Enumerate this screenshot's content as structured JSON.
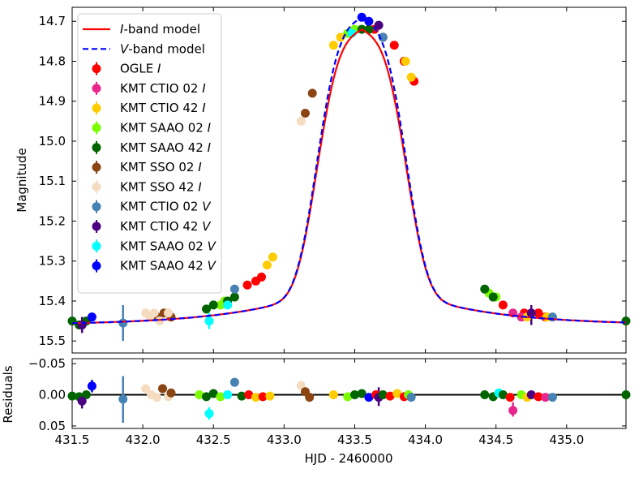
{
  "chart_data": [
    {
      "type": "line",
      "panel": "main",
      "xlabel": "HJD - 2460000",
      "ylabel": "Magnitude",
      "xlim": [
        431.5,
        435.42
      ],
      "ylim": [
        15.53,
        14.665
      ],
      "y_inverted": true,
      "yticks": [
        14.7,
        14.8,
        14.9,
        15.0,
        15.1,
        15.2,
        15.3,
        15.4,
        15.5
      ],
      "ytick_labels": [
        "14.7",
        "14.8",
        "14.9",
        "15.0",
        "15.1",
        "15.2",
        "15.3",
        "15.4",
        "15.5"
      ],
      "legend_position": "top-left",
      "models": [
        {
          "name_prefix": "I",
          "name_suffix": "-band model",
          "color": "#ff0000",
          "style": "solid",
          "peak_x": 433.55,
          "peak_y": 14.72
        },
        {
          "name_prefix": "V",
          "name_suffix": "-band model",
          "color": "#0000ff",
          "style": "dashed",
          "peak_x": 433.55,
          "peak_y": 14.69
        }
      ],
      "model_params": {
        "t0": 433.55,
        "baseline": 15.46,
        "wing_amp": 0.14,
        "wing_tau": 0.6,
        "core_width": 0.36,
        "core_power": 3.2
      },
      "series": [
        {
          "name": "OGLE",
          "band": "I",
          "color": "#ff0000",
          "points": [
            [
              432.74,
              15.36
            ],
            [
              432.8,
              15.35
            ],
            [
              432.84,
              15.34
            ],
            [
              433.64,
              14.72
            ],
            [
              433.7,
              14.74
            ],
            [
              433.78,
              14.76
            ],
            [
              433.85,
              14.8
            ],
            [
              433.92,
              14.85
            ],
            [
              434.55,
              15.41
            ],
            [
              434.7,
              15.43
            ],
            [
              434.8,
              15.43
            ],
            [
              434.85,
              15.44
            ]
          ]
        },
        {
          "name": "KMT CTIO 02",
          "band": "I",
          "color": "#e8268c",
          "points": [
            [
              434.62,
              15.43
            ],
            [
              434.68,
              15.44
            ]
          ]
        },
        {
          "name": "KMT CTIO 42",
          "band": "I",
          "color": "#ffcc00",
          "points": [
            [
              432.88,
              15.31
            ],
            [
              432.92,
              15.29
            ],
            [
              433.35,
              14.76
            ],
            [
              433.4,
              14.74
            ],
            [
              433.86,
              14.8
            ],
            [
              433.9,
              14.84
            ],
            [
              434.72,
              15.44
            ],
            [
              434.86,
              15.44
            ]
          ]
        },
        {
          "name": "KMT SAAO 02",
          "band": "I",
          "color": "#7cfc00",
          "points": [
            [
              432.55,
              15.41
            ],
            [
              432.58,
              15.4
            ],
            [
              433.45,
              14.73
            ],
            [
              433.5,
              14.72
            ],
            [
              434.45,
              15.38
            ],
            [
              434.5,
              15.39
            ]
          ]
        },
        {
          "name": "KMT SAAO 42",
          "band": "I",
          "color": "#006400",
          "points": [
            [
              431.5,
              15.45
            ],
            [
              431.55,
              15.46
            ],
            [
              431.6,
              15.45
            ],
            [
              432.45,
              15.42
            ],
            [
              432.5,
              15.41
            ],
            [
              432.6,
              15.4
            ],
            [
              432.65,
              15.39
            ],
            [
              433.55,
              14.72
            ],
            [
              433.6,
              14.72
            ],
            [
              434.42,
              15.37
            ],
            [
              434.48,
              15.39
            ],
            [
              435.42,
              15.45
            ]
          ]
        },
        {
          "name": "KMT SSO 02",
          "band": "I",
          "color": "#8b4513",
          "points": [
            [
              432.1,
              15.44
            ],
            [
              432.15,
              15.43
            ],
            [
              432.2,
              15.44
            ],
            [
              433.15,
              14.93
            ],
            [
              433.2,
              14.88
            ]
          ]
        },
        {
          "name": "KMT SSO 42",
          "band": "I",
          "color": "#f5dcc0",
          "points": [
            [
              432.02,
              15.43
            ],
            [
              432.05,
              15.44
            ],
            [
              432.08,
              15.43
            ],
            [
              432.12,
              15.45
            ],
            [
              432.18,
              15.43
            ],
            [
              433.12,
              14.95
            ]
          ]
        },
        {
          "name": "KMT CTIO 02",
          "band": "V",
          "color": "#4682b4",
          "points": [
            [
              431.86,
              15.455
            ],
            [
              432.65,
              15.37
            ],
            [
              433.7,
              14.74
            ],
            [
              434.9,
              15.44
            ]
          ]
        },
        {
          "name": "KMT CTIO 42",
          "band": "V",
          "color": "#4b0082",
          "points": [
            [
              431.57,
              15.46
            ],
            [
              433.67,
              14.71
            ],
            [
              434.75,
              15.43
            ]
          ]
        },
        {
          "name": "KMT SAAO 02",
          "band": "V",
          "color": "#00ffff",
          "points": [
            [
              432.47,
              15.45
            ],
            [
              432.6,
              15.41
            ],
            [
              433.48,
              14.73
            ]
          ]
        },
        {
          "name": "KMT SAAO 42",
          "band": "V",
          "color": "#0000ff",
          "points": [
            [
              431.64,
              15.44
            ],
            [
              433.55,
              14.69
            ],
            [
              433.6,
              14.7
            ]
          ]
        }
      ],
      "error_bars": [
        {
          "x": 431.86,
          "y": 15.455,
          "lo": 15.41,
          "hi": 15.5,
          "color": "#4682b4"
        },
        {
          "x": 431.57,
          "y": 15.46,
          "lo": 15.44,
          "hi": 15.48,
          "color": "#4b0082"
        },
        {
          "x": 434.75,
          "y": 15.43,
          "lo": 15.41,
          "hi": 15.46,
          "color": "#4b0082"
        },
        {
          "x": 432.47,
          "y": 15.45,
          "lo": 15.43,
          "hi": 15.47,
          "color": "#00ffff"
        }
      ]
    },
    {
      "type": "scatter",
      "panel": "residuals",
      "ylabel": "Residuals",
      "xlabel": "HJD - 2460000",
      "xlim": [
        431.5,
        435.42
      ],
      "ylim": [
        0.054,
        -0.058
      ],
      "y_inverted": true,
      "yticks": [
        -0.05,
        0.0,
        0.05
      ],
      "ytick_labels": [
        "−0.05",
        "0.00",
        "0.05"
      ],
      "xticks": [
        431.5,
        432.0,
        432.5,
        433.0,
        433.5,
        434.0,
        434.5,
        435.0
      ],
      "xtick_labels": [
        "431.5",
        "432.0",
        "432.5",
        "433.0",
        "433.5",
        "434.0",
        "434.5",
        "435.0"
      ],
      "zero_line": true,
      "points": [
        [
          431.5,
          0.002,
          "#006400"
        ],
        [
          431.55,
          0.003,
          "#006400"
        ],
        [
          431.6,
          0.0,
          "#006400"
        ],
        [
          431.57,
          0.01,
          "#4b0082"
        ],
        [
          431.64,
          -0.014,
          "#0000ff"
        ],
        [
          431.86,
          0.007,
          "#4682b4"
        ],
        [
          432.02,
          -0.01,
          "#f5dcc0"
        ],
        [
          432.06,
          0.0,
          "#f5dcc0"
        ],
        [
          432.1,
          0.004,
          "#f5dcc0"
        ],
        [
          432.14,
          -0.01,
          "#8b4513"
        ],
        [
          432.18,
          0.003,
          "#f5dcc0"
        ],
        [
          432.2,
          -0.003,
          "#8b4513"
        ],
        [
          432.4,
          0.0,
          "#7cfc00"
        ],
        [
          432.45,
          0.003,
          "#006400"
        ],
        [
          432.47,
          0.03,
          "#00ffff"
        ],
        [
          432.5,
          -0.002,
          "#006400"
        ],
        [
          432.55,
          0.003,
          "#7cfc00"
        ],
        [
          432.6,
          0.0,
          "#00ffff"
        ],
        [
          432.65,
          -0.02,
          "#4682b4"
        ],
        [
          432.7,
          0.002,
          "#006400"
        ],
        [
          432.75,
          0.0,
          "#ff0000"
        ],
        [
          432.8,
          0.004,
          "#ffcc00"
        ],
        [
          432.85,
          0.003,
          "#ff0000"
        ],
        [
          432.9,
          0.002,
          "#ffcc00"
        ],
        [
          433.12,
          -0.015,
          "#f5dcc0"
        ],
        [
          433.15,
          -0.005,
          "#8b4513"
        ],
        [
          433.18,
          0.004,
          "#8b4513"
        ],
        [
          433.35,
          0.0,
          "#ffcc00"
        ],
        [
          433.45,
          0.003,
          "#7cfc00"
        ],
        [
          433.5,
          0.0,
          "#006400"
        ],
        [
          433.55,
          -0.002,
          "#006400"
        ],
        [
          433.6,
          0.004,
          "#0000ff"
        ],
        [
          433.65,
          0.0,
          "#ff0000"
        ],
        [
          433.67,
          0.004,
          "#4b0082"
        ],
        [
          433.7,
          0.0,
          "#006400"
        ],
        [
          433.75,
          0.002,
          "#ff0000"
        ],
        [
          433.8,
          -0.002,
          "#ffcc00"
        ],
        [
          433.85,
          0.003,
          "#ff0000"
        ],
        [
          433.88,
          0.0,
          "#7cfc00"
        ],
        [
          433.9,
          0.004,
          "#4682b4"
        ],
        [
          434.42,
          0.0,
          "#006400"
        ],
        [
          434.48,
          0.003,
          "#006400"
        ],
        [
          434.52,
          -0.003,
          "#00ffff"
        ],
        [
          434.55,
          0.0,
          "#006400"
        ],
        [
          434.6,
          0.004,
          "#ff0000"
        ],
        [
          434.62,
          0.025,
          "#e8268c"
        ],
        [
          434.68,
          0.0,
          "#7cfc00"
        ],
        [
          434.72,
          0.004,
          "#ffcc00"
        ],
        [
          434.75,
          0.0,
          "#4b0082"
        ],
        [
          434.8,
          0.003,
          "#ff0000"
        ],
        [
          434.85,
          0.004,
          "#e8268c"
        ],
        [
          434.9,
          0.004,
          "#4682b4"
        ],
        [
          435.42,
          0.0,
          "#006400"
        ]
      ],
      "error_bars": [
        {
          "x": 431.86,
          "lo": -0.03,
          "hi": 0.045,
          "color": "#4682b4"
        },
        {
          "x": 432.47,
          "lo": 0.02,
          "hi": 0.04,
          "color": "#00ffff"
        },
        {
          "x": 433.67,
          "lo": -0.012,
          "hi": 0.018,
          "color": "#4b0082"
        },
        {
          "x": 434.62,
          "lo": 0.012,
          "hi": 0.035,
          "color": "#e8268c"
        },
        {
          "x": 431.64,
          "lo": -0.024,
          "hi": -0.004,
          "color": "#0000ff"
        },
        {
          "x": 431.57,
          "lo": -0.002,
          "hi": 0.022,
          "color": "#4b0082"
        }
      ]
    }
  ]
}
